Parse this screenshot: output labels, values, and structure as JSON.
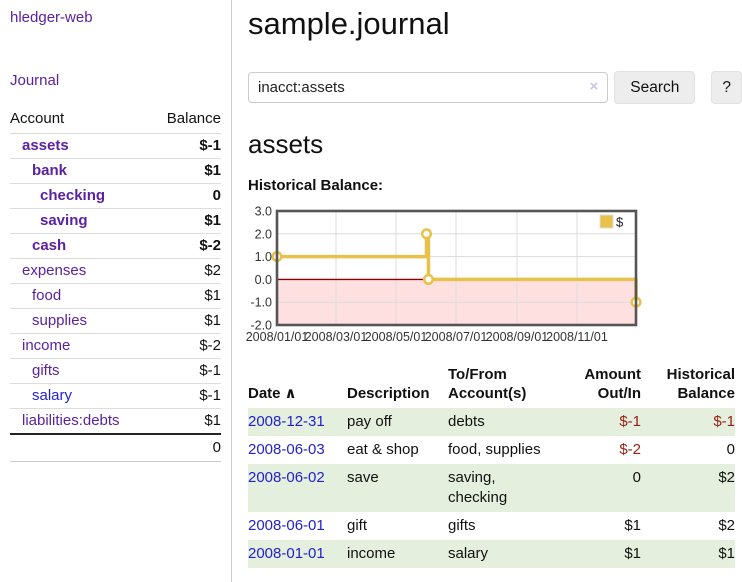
{
  "app": {
    "title": "hledger-web"
  },
  "sidebar": {
    "journal_label": "Journal",
    "accounts_table": {
      "headers": {
        "account": "Account",
        "balance": "Balance"
      },
      "rows": [
        {
          "name": "assets",
          "depth": 1,
          "bold": true,
          "balance": "$-1"
        },
        {
          "name": "bank",
          "depth": 2,
          "bold": true,
          "balance": "$1"
        },
        {
          "name": "checking",
          "depth": 3,
          "bold": true,
          "balance": "0"
        },
        {
          "name": "saving",
          "depth": 3,
          "bold": true,
          "balance": "$1"
        },
        {
          "name": "cash",
          "depth": 2,
          "bold": true,
          "balance": "$-2"
        },
        {
          "name": "expenses",
          "depth": 1,
          "bold": false,
          "balance": "$2"
        },
        {
          "name": "food",
          "depth": 2,
          "bold": false,
          "balance": "$1"
        },
        {
          "name": "supplies",
          "depth": 2,
          "bold": false,
          "balance": "$1"
        },
        {
          "name": "income",
          "depth": 1,
          "bold": false,
          "balance": "$-2"
        },
        {
          "name": "gifts",
          "depth": 2,
          "bold": false,
          "balance": "$-1"
        },
        {
          "name": "salary",
          "depth": 2,
          "bold": false,
          "balance": "$-1",
          "blue": true
        },
        {
          "name": "liabilities:debts",
          "depth": 1,
          "bold": false,
          "balance": "$1"
        }
      ],
      "total": "0"
    }
  },
  "main": {
    "title": "sample.journal",
    "search": {
      "value": "inacct:assets",
      "clear_label": "×",
      "button_label": "Search",
      "help_label": "?"
    },
    "account_heading": "assets",
    "chart_label": "Historical Balance:"
  },
  "chart_data": {
    "type": "line",
    "title": "Historical Balance:",
    "series": [
      {
        "name": "$",
        "color": "#e8c14a",
        "step": true,
        "points": [
          [
            "2008/01/01",
            1
          ],
          [
            "2008/06/01",
            2
          ],
          [
            "2008/06/03",
            0
          ],
          [
            "2008/12/31",
            -1
          ]
        ]
      }
    ],
    "ylim": [
      -2,
      3
    ],
    "xlim": [
      "2008/01/01",
      "2008/12/31"
    ],
    "yticks": [
      "3.0",
      "2.0",
      "1.0",
      "0.0",
      "-1.0",
      "-2.0"
    ],
    "xticks": [
      "2008/01/01",
      "2008/03/01",
      "2008/05/01",
      "2008/07/01",
      "2008/09/01",
      "2008/11/01"
    ],
    "legend_position": "top-right",
    "legend_label": "$",
    "grid": true,
    "zero_line_color": "#8b0000",
    "negative_region_color": "rgba(255,0,0,0.12)",
    "border_color": "#555555",
    "grid_color": "#dcdcdc"
  },
  "transactions": {
    "columns": [
      "Date",
      "Description",
      "To/From Account(s)",
      "Amount Out/In",
      "Historical Balance"
    ],
    "sort_indicator": "∧",
    "rows": [
      {
        "date": "2008-12-31",
        "description": "pay off",
        "accounts": "debts",
        "amount": "$-1",
        "balance": "$-1"
      },
      {
        "date": "2008-06-03",
        "description": "eat & shop",
        "accounts": "food, supplies",
        "amount": "$-2",
        "balance": "0"
      },
      {
        "date": "2008-06-02",
        "description": "save",
        "accounts": "saving, checking",
        "amount": "0",
        "balance": "$2"
      },
      {
        "date": "2008-06-01",
        "description": "gift",
        "accounts": "gifts",
        "amount": "$1",
        "balance": "$2"
      },
      {
        "date": "2008-01-01",
        "description": "income",
        "accounts": "salary",
        "amount": "$1",
        "balance": "$1"
      }
    ]
  }
}
